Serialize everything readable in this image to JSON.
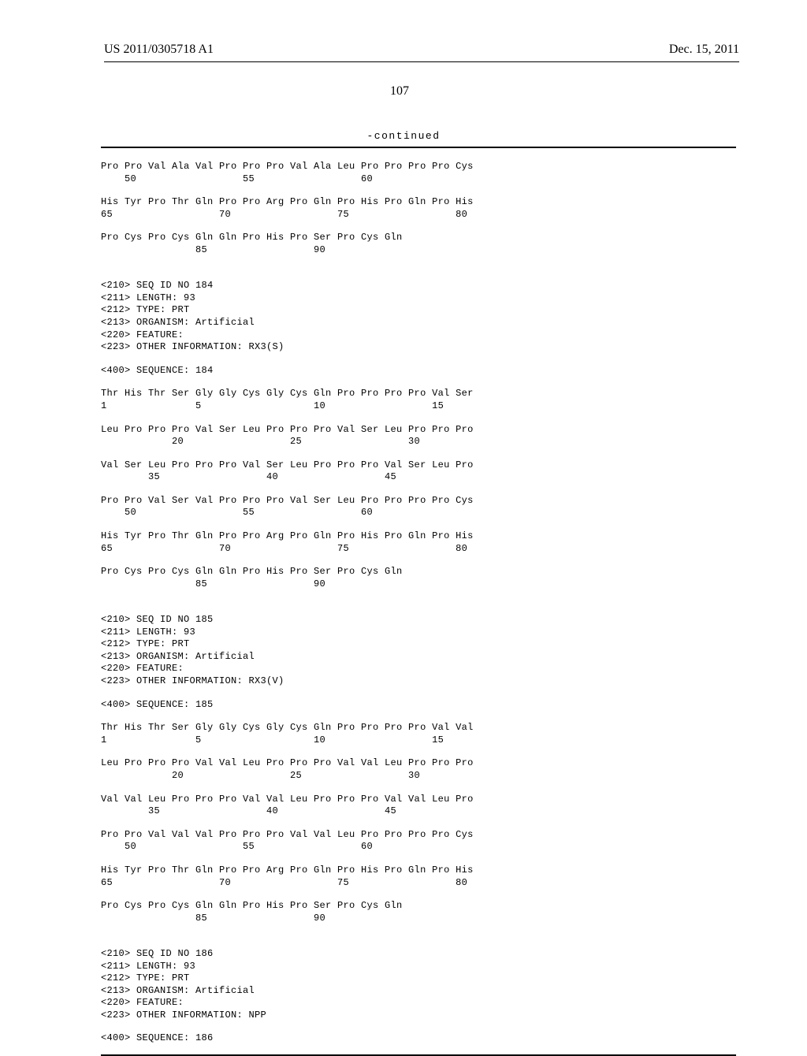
{
  "header": {
    "pub_number": "US 2011/0305718 A1",
    "pub_date": "Dec. 15, 2011"
  },
  "page_number": "107",
  "continued_label": "-continued",
  "blocks": [
    {
      "lines": [
        "Pro Pro Val Ala Val Pro Pro Pro Val Ala Leu Pro Pro Pro Pro Cys",
        "    50                  55                  60"
      ]
    },
    {
      "lines": [
        "His Tyr Pro Thr Gln Pro Pro Arg Pro Gln Pro His Pro Gln Pro His",
        "65                  70                  75                  80"
      ]
    },
    {
      "lines": [
        "Pro Cys Pro Cys Gln Gln Pro His Pro Ser Pro Cys Gln",
        "                85                  90"
      ]
    },
    {
      "lines": [
        "",
        "<210> SEQ ID NO 184",
        "<211> LENGTH: 93",
        "<212> TYPE: PRT",
        "<213> ORGANISM: Artificial",
        "<220> FEATURE:",
        "<223> OTHER INFORMATION: RX3(S)"
      ]
    },
    {
      "lines": [
        "<400> SEQUENCE: 184"
      ]
    },
    {
      "lines": [
        "Thr His Thr Ser Gly Gly Cys Gly Cys Gln Pro Pro Pro Pro Val Ser",
        "1               5                   10                  15"
      ]
    },
    {
      "lines": [
        "Leu Pro Pro Pro Val Ser Leu Pro Pro Pro Val Ser Leu Pro Pro Pro",
        "            20                  25                  30"
      ]
    },
    {
      "lines": [
        "Val Ser Leu Pro Pro Pro Val Ser Leu Pro Pro Pro Val Ser Leu Pro",
        "        35                  40                  45"
      ]
    },
    {
      "lines": [
        "Pro Pro Val Ser Val Pro Pro Pro Val Ser Leu Pro Pro Pro Pro Cys",
        "    50                  55                  60"
      ]
    },
    {
      "lines": [
        "His Tyr Pro Thr Gln Pro Pro Arg Pro Gln Pro His Pro Gln Pro His",
        "65                  70                  75                  80"
      ]
    },
    {
      "lines": [
        "Pro Cys Pro Cys Gln Gln Pro His Pro Ser Pro Cys Gln",
        "                85                  90"
      ]
    },
    {
      "lines": [
        "",
        "<210> SEQ ID NO 185",
        "<211> LENGTH: 93",
        "<212> TYPE: PRT",
        "<213> ORGANISM: Artificial",
        "<220> FEATURE:",
        "<223> OTHER INFORMATION: RX3(V)"
      ]
    },
    {
      "lines": [
        "<400> SEQUENCE: 185"
      ]
    },
    {
      "lines": [
        "Thr His Thr Ser Gly Gly Cys Gly Cys Gln Pro Pro Pro Pro Val Val",
        "1               5                   10                  15"
      ]
    },
    {
      "lines": [
        "Leu Pro Pro Pro Val Val Leu Pro Pro Pro Val Val Leu Pro Pro Pro",
        "            20                  25                  30"
      ]
    },
    {
      "lines": [
        "Val Val Leu Pro Pro Pro Val Val Leu Pro Pro Pro Val Val Leu Pro",
        "        35                  40                  45"
      ]
    },
    {
      "lines": [
        "Pro Pro Val Val Val Pro Pro Pro Val Val Leu Pro Pro Pro Pro Cys",
        "    50                  55                  60"
      ]
    },
    {
      "lines": [
        "His Tyr Pro Thr Gln Pro Pro Arg Pro Gln Pro His Pro Gln Pro His",
        "65                  70                  75                  80"
      ]
    },
    {
      "lines": [
        "Pro Cys Pro Cys Gln Gln Pro His Pro Ser Pro Cys Gln",
        "                85                  90"
      ]
    },
    {
      "lines": [
        "",
        "<210> SEQ ID NO 186",
        "<211> LENGTH: 93",
        "<212> TYPE: PRT",
        "<213> ORGANISM: Artificial",
        "<220> FEATURE:",
        "<223> OTHER INFORMATION: NPP"
      ]
    },
    {
      "lines": [
        "<400> SEQUENCE: 186"
      ]
    }
  ]
}
